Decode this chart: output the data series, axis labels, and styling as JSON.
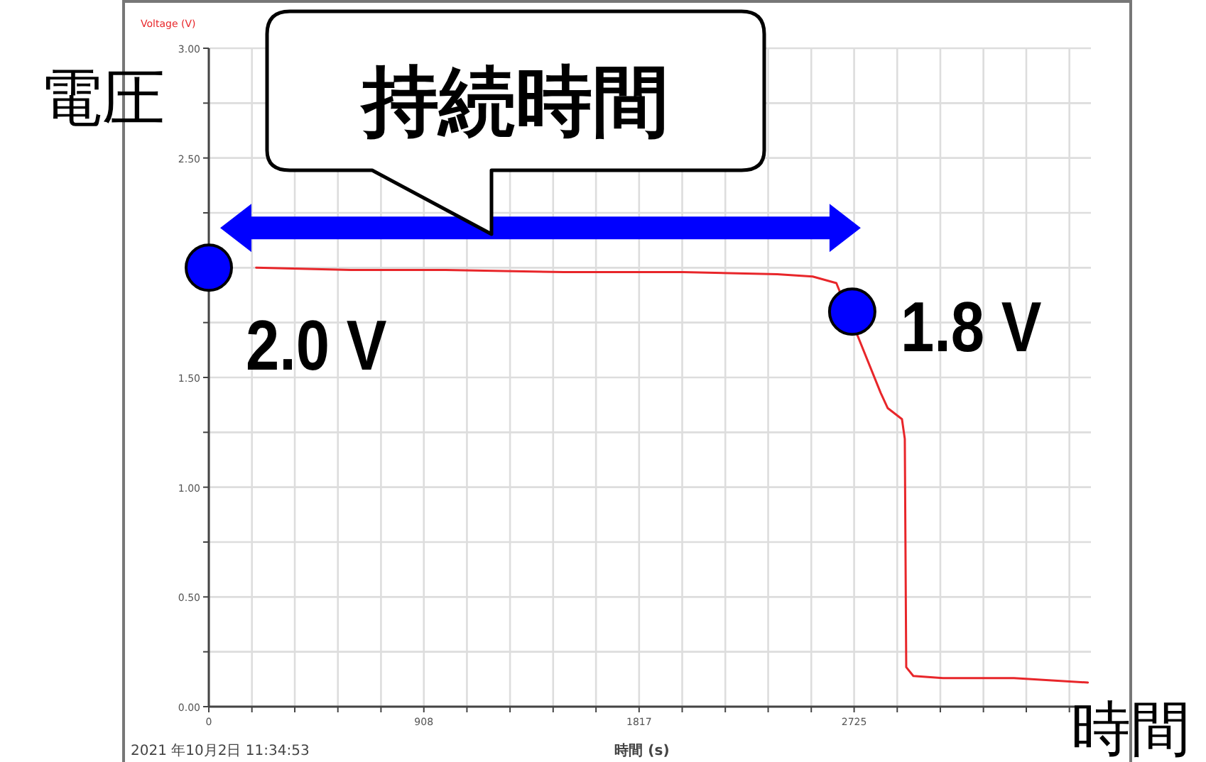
{
  "chart_data": {
    "type": "line",
    "xlabel": "時間",
    "ylabel": "電圧",
    "annotations": [
      "持続時間",
      "Voltage (V)",
      "時間 (s)",
      "2021 年10月2日 11:34:53"
    ],
    "xlim": [
      0,
      3725
    ],
    "ylim": [
      0,
      3
    ],
    "xticks": [
      0,
      {
        "value": 182,
        "label": null
      },
      {
        "value": 363,
        "label": null
      },
      {
        "value": 545,
        "label": null
      },
      {
        "value": 727,
        "label": null
      },
      908,
      {
        "value": 1090,
        "label": null
      },
      {
        "value": 1272,
        "label": null
      },
      {
        "value": 1454,
        "label": null
      },
      {
        "value": 1635,
        "label": null
      },
      1817,
      {
        "value": 1999,
        "label": null
      },
      {
        "value": 2181,
        "label": null
      },
      {
        "value": 2362,
        "label": null
      },
      {
        "value": 2544,
        "label": null
      },
      2725,
      {
        "value": 2907,
        "label": null
      },
      {
        "value": 3089,
        "label": null
      },
      {
        "value": 3271,
        "label": null
      },
      {
        "value": 3452,
        "label": null
      },
      {
        "value": 3634,
        "label": null
      }
    ],
    "yticks": [
      {
        "value": 0,
        "label": "0.00"
      },
      {
        "value": 0.25,
        "label": null
      },
      {
        "value": 0.5,
        "label": "0.50"
      },
      {
        "value": 0.75,
        "label": null
      },
      {
        "value": 1,
        "label": "1.00"
      },
      {
        "value": 1.25,
        "label": null
      },
      {
        "value": 1.5,
        "label": "1.50"
      },
      {
        "value": 1.75,
        "label": null
      },
      {
        "value": 2,
        "label": null
      },
      {
        "value": 2.25,
        "label": null
      },
      {
        "value": 2.5,
        "label": "2.50"
      },
      {
        "value": 2.75,
        "label": null
      },
      {
        "value": 3,
        "label": "3.00"
      }
    ],
    "grid": true,
    "series": [
      {
        "color": "#e8262a",
        "x": [
          200,
          600,
          1000,
          1500,
          2000,
          2400,
          2550,
          2650,
          2837,
          2867,
          2927,
          2939,
          2945,
          2975,
          3100,
          3400,
          3712
        ],
        "values": [
          2.0,
          1.99,
          1.99,
          1.98,
          1.98,
          1.97,
          1.96,
          1.93,
          1.43,
          1.36,
          1.31,
          1.22,
          0.18,
          0.14,
          0.13,
          0.13,
          0.11
        ]
      },
      {
        "type": "scatter",
        "color": "#0000ff",
        "marker": "circle",
        "x": [
          0,
          2717
        ],
        "values": [
          2.0,
          1.8
        ],
        "value_labels": [
          "2.0 V",
          "1.8 V"
        ]
      }
    ]
  }
}
